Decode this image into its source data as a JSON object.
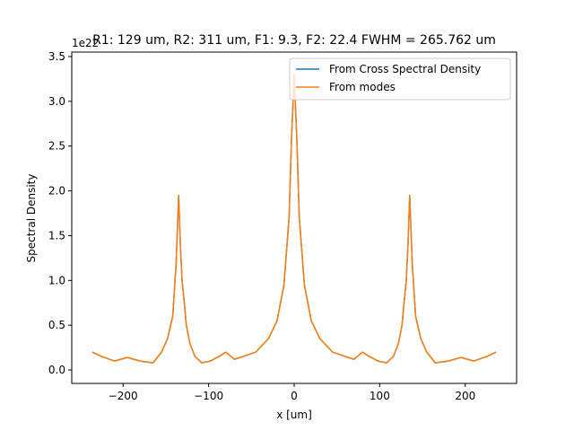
{
  "chart_data": {
    "type": "line",
    "title": "R1: 129 um, R2: 311 um, F1:  9.3, F2: 22.4  FWHM = 265.762 um",
    "xlabel": "x [um]",
    "ylabel": "Spectral Density",
    "y_scale_label": "1e22",
    "xlim": [
      -260,
      260
    ],
    "ylim": [
      -0.15,
      3.55
    ],
    "x_ticks": [
      -200,
      -100,
      0,
      100,
      200
    ],
    "x_tick_labels": [
      "−200",
      "−100",
      "0",
      "100",
      "200"
    ],
    "y_ticks": [
      0.0,
      0.5,
      1.0,
      1.5,
      2.0,
      2.5,
      3.0,
      3.5
    ],
    "y_tick_labels": [
      "0.0",
      "0.5",
      "1.0",
      "1.5",
      "2.0",
      "2.5",
      "3.0",
      "3.5"
    ],
    "grid": false,
    "legend_position": "top-right",
    "series": [
      {
        "name": "From Cross Spectral Density",
        "color": "#1f77b4",
        "x": [
          -236,
          -225,
          -210,
          -195,
          -180,
          -165,
          -155,
          -148,
          -142,
          -138,
          -135,
          -133,
          -131,
          -129,
          -126,
          -122,
          -116,
          -108,
          -98,
          -88,
          -80,
          -70,
          -60,
          -45,
          -30,
          -20,
          -12,
          -6,
          -3,
          -1,
          0,
          1,
          3,
          6,
          12,
          20,
          30,
          45,
          60,
          70,
          80,
          88,
          98,
          108,
          116,
          122,
          126,
          129,
          131,
          133,
          135,
          138,
          142,
          148,
          155,
          165,
          180,
          195,
          210,
          225,
          236
        ],
        "y": [
          0.2,
          0.15,
          0.1,
          0.14,
          0.1,
          0.08,
          0.2,
          0.35,
          0.6,
          1.2,
          1.95,
          1.4,
          1.0,
          0.8,
          0.5,
          0.3,
          0.15,
          0.08,
          0.1,
          0.15,
          0.2,
          0.12,
          0.15,
          0.2,
          0.35,
          0.55,
          0.95,
          1.7,
          2.6,
          3.05,
          3.3,
          3.05,
          2.6,
          1.7,
          0.95,
          0.55,
          0.35,
          0.2,
          0.15,
          0.12,
          0.2,
          0.15,
          0.1,
          0.08,
          0.15,
          0.3,
          0.5,
          0.8,
          1.0,
          1.4,
          1.95,
          1.2,
          0.6,
          0.35,
          0.2,
          0.08,
          0.1,
          0.14,
          0.1,
          0.15,
          0.2
        ]
      },
      {
        "name": "From modes",
        "color": "#ff7f0e",
        "x": [
          -236,
          -225,
          -210,
          -195,
          -180,
          -165,
          -155,
          -148,
          -142,
          -138,
          -135,
          -133,
          -131,
          -129,
          -126,
          -122,
          -116,
          -108,
          -98,
          -88,
          -80,
          -70,
          -60,
          -45,
          -30,
          -20,
          -12,
          -6,
          -3,
          -1,
          0,
          1,
          3,
          6,
          12,
          20,
          30,
          45,
          60,
          70,
          80,
          88,
          98,
          108,
          116,
          122,
          126,
          129,
          131,
          133,
          135,
          138,
          142,
          148,
          155,
          165,
          180,
          195,
          210,
          225,
          236
        ],
        "y": [
          0.2,
          0.15,
          0.1,
          0.14,
          0.1,
          0.08,
          0.2,
          0.35,
          0.6,
          1.2,
          1.95,
          1.4,
          1.0,
          0.8,
          0.5,
          0.3,
          0.15,
          0.08,
          0.1,
          0.15,
          0.2,
          0.12,
          0.15,
          0.2,
          0.35,
          0.55,
          0.95,
          1.7,
          2.6,
          3.05,
          3.3,
          3.05,
          2.6,
          1.7,
          0.95,
          0.55,
          0.35,
          0.2,
          0.15,
          0.12,
          0.2,
          0.15,
          0.1,
          0.08,
          0.15,
          0.3,
          0.5,
          0.8,
          1.0,
          1.4,
          1.95,
          1.2,
          0.6,
          0.35,
          0.2,
          0.08,
          0.1,
          0.14,
          0.1,
          0.15,
          0.2
        ]
      }
    ]
  }
}
